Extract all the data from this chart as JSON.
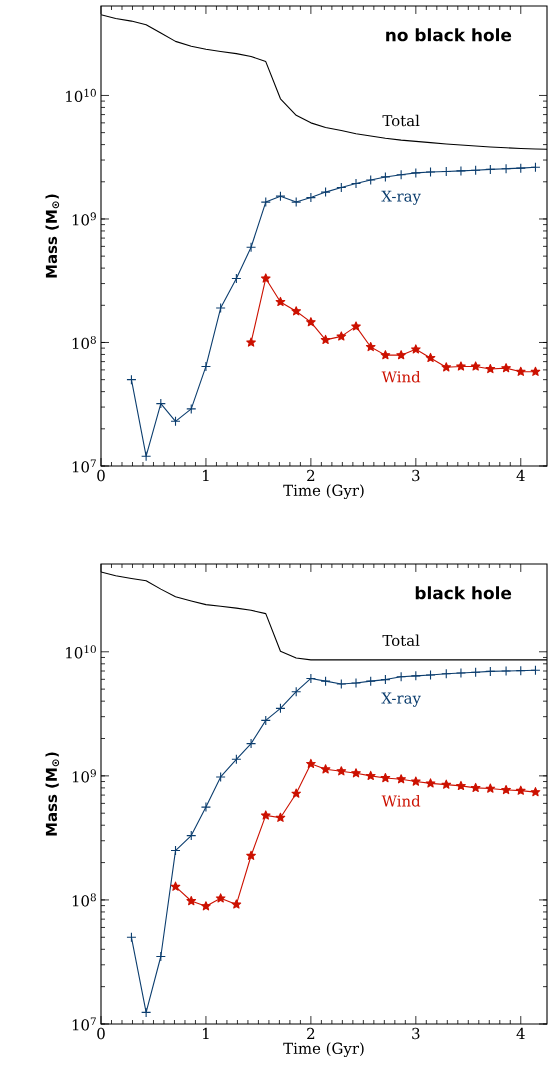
{
  "chart_data": [
    {
      "type": "line",
      "title": "no black hole",
      "xlabel": "Time (Gyr)",
      "ylabel": "Mass (M$_{⊙}$)",
      "log": true,
      "xlim": [
        0,
        4.25
      ],
      "ylim": [
        10000000.0,
        53000000000.0
      ],
      "xticks": [
        0,
        1,
        2,
        3,
        4
      ],
      "yticks": [
        {
          "value": 10000000.0,
          "label": "10$^{7}$"
        },
        {
          "value": 100000000.0,
          "label": "10$^{8}$"
        },
        {
          "value": 1000000000.0,
          "label": "10$^{9}$"
        },
        {
          "value": 10000000000.0,
          "label": "10$^{10}$"
        }
      ],
      "series": [
        {
          "name": "Total",
          "color": "#000000",
          "marker": "none",
          "x": [
            0,
            0.14,
            0.29,
            0.43,
            0.57,
            0.71,
            0.86,
            1.0,
            1.14,
            1.29,
            1.43,
            1.57,
            1.71,
            1.86,
            2.0,
            2.14,
            2.29,
            2.43,
            2.57,
            2.71,
            2.86,
            3.0,
            3.14,
            3.29,
            3.43,
            3.57,
            3.71,
            3.86,
            4.0,
            4.14,
            4.25
          ],
          "values": [
            45000000000.0,
            42000000000.0,
            40000000000.0,
            37400000000.0,
            32000000000.0,
            27400000000.0,
            25000000000.0,
            23700000000.0,
            22700000000.0,
            21800000000.0,
            20700000000.0,
            18800000000.0,
            9400000000.0,
            6900000000.0,
            6000000000.0,
            5500000000.0,
            5200000000.0,
            4900000000.0,
            4700000000.0,
            4500000000.0,
            4350000000.0,
            4250000000.0,
            4150000000.0,
            4050000000.0,
            3970000000.0,
            3900000000.0,
            3830000000.0,
            3770000000.0,
            3720000000.0,
            3690000000.0,
            3670000000.0
          ]
        },
        {
          "name": "X-ray",
          "color": "#0b3d6e",
          "marker": "cross",
          "x": [
            0.29,
            0.43,
            0.57,
            0.71,
            0.86,
            1.0,
            1.14,
            1.29,
            1.43,
            1.57,
            1.71,
            1.86,
            2.0,
            2.14,
            2.29,
            2.43,
            2.57,
            2.71,
            2.86,
            3.0,
            3.14,
            3.29,
            3.43,
            3.57,
            3.71,
            3.86,
            4.0,
            4.14
          ],
          "values": [
            50000000.0,
            12000000.0,
            32000000.0,
            23000000.0,
            29000000.0,
            64000000.0,
            190000000.0,
            330000000.0,
            590000000.0,
            1370000000.0,
            1530000000.0,
            1370000000.0,
            1490000000.0,
            1650000000.0,
            1800000000.0,
            1940000000.0,
            2070000000.0,
            2190000000.0,
            2280000000.0,
            2360000000.0,
            2400000000.0,
            2420000000.0,
            2450000000.0,
            2480000000.0,
            2520000000.0,
            2550000000.0,
            2580000000.0,
            2620000000.0
          ]
        },
        {
          "name": "Wind",
          "color": "#cc1100",
          "marker": "star",
          "x": [
            1.43,
            1.57,
            1.71,
            1.86,
            2.0,
            2.14,
            2.29,
            2.43,
            2.57,
            2.71,
            2.86,
            3.0,
            3.14,
            3.29,
            3.43,
            3.57,
            3.71,
            3.86,
            4.0,
            4.14
          ],
          "values": [
            100000000.0,
            330000000.0,
            213000000.0,
            179000000.0,
            146000000.0,
            105000000.0,
            112000000.0,
            135000000.0,
            92000000.0,
            79000000.0,
            79000000.0,
            88000000.0,
            75000000.0,
            63000000.0,
            64000000.0,
            64000000.0,
            61000000.0,
            62000000.0,
            58000000.0,
            58000000.0
          ]
        }
      ]
    },
    {
      "type": "line",
      "title": "black hole",
      "xlabel": "Time (Gyr)",
      "ylabel": "Mass (M$_{⊙}$)",
      "log": true,
      "xlim": [
        0,
        4.25
      ],
      "ylim": [
        10000000.0,
        51000000000.0
      ],
      "xticks": [
        0,
        1,
        2,
        3,
        4
      ],
      "yticks": [
        {
          "value": 10000000.0,
          "label": "10$^{7}$"
        },
        {
          "value": 100000000.0,
          "label": "10$^{8}$"
        },
        {
          "value": 1000000000.0,
          "label": "10$^{9}$"
        },
        {
          "value": 10000000000.0,
          "label": "10$^{10}$"
        }
      ],
      "series": [
        {
          "name": "Total",
          "color": "#000000",
          "marker": "none",
          "x": [
            0,
            0.14,
            0.29,
            0.43,
            0.57,
            0.71,
            0.86,
            1.0,
            1.14,
            1.29,
            1.43,
            1.57,
            1.71,
            1.86,
            2.0,
            2.14,
            2.29,
            2.43,
            2.57,
            2.71,
            2.86,
            3.0,
            3.14,
            3.29,
            3.43,
            3.57,
            3.71,
            3.86,
            4.0,
            4.14,
            4.25
          ],
          "values": [
            44000000000.0,
            41000000000.0,
            39000000000.0,
            37400000000.0,
            32000000000.0,
            27800000000.0,
            25700000000.0,
            24000000000.0,
            23300000000.0,
            22500000000.0,
            21600000000.0,
            20300000000.0,
            10100000000.0,
            8900000000.0,
            8600000000.0,
            8600000000.0,
            8600000000.0,
            8600000000.0,
            8600000000.0,
            8600000000.0,
            8600000000.0,
            8600000000.0,
            8600000000.0,
            8600000000.0,
            8600000000.0,
            8600000000.0,
            8600000000.0,
            8600000000.0,
            8600000000.0,
            8600000000.0,
            8600000000.0
          ]
        },
        {
          "name": "X-ray",
          "color": "#0b3d6e",
          "marker": "cross",
          "x": [
            0.29,
            0.43,
            0.57,
            0.71,
            0.86,
            1.0,
            1.14,
            1.29,
            1.43,
            1.57,
            1.71,
            1.86,
            2.0,
            2.14,
            2.29,
            2.43,
            2.57,
            2.71,
            2.86,
            3.0,
            3.14,
            3.29,
            3.43,
            3.57,
            3.71,
            3.86,
            4.0,
            4.14
          ],
          "values": [
            50000000.0,
            12400000.0,
            35000000.0,
            250000000.0,
            330000000.0,
            560000000.0,
            980000000.0,
            1360000000.0,
            1820000000.0,
            2800000000.0,
            3500000000.0,
            4770000000.0,
            6100000000.0,
            5800000000.0,
            5500000000.0,
            5600000000.0,
            5800000000.0,
            5970000000.0,
            6300000000.0,
            6400000000.0,
            6500000000.0,
            6650000000.0,
            6750000000.0,
            6850000000.0,
            6950000000.0,
            7000000000.0,
            7050000000.0,
            7100000000.0
          ]
        },
        {
          "name": "Wind",
          "color": "#cc1100",
          "marker": "star",
          "x": [
            0.71,
            0.86,
            1.0,
            1.14,
            1.29,
            1.43,
            1.57,
            1.71,
            1.86,
            2.0,
            2.14,
            2.29,
            2.43,
            2.57,
            2.71,
            2.86,
            3.0,
            3.14,
            3.29,
            3.43,
            3.57,
            3.71,
            3.86,
            4.0,
            4.14
          ],
          "values": [
            128000000.0,
            98000000.0,
            89000000.0,
            103000000.0,
            92000000.0,
            227000000.0,
            480000000.0,
            460000000.0,
            720000000.0,
            1250000000.0,
            1130000000.0,
            1090000000.0,
            1050000000.0,
            1000000000.0,
            960000000.0,
            940000000.0,
            900000000.0,
            870000000.0,
            850000000.0,
            830000000.0,
            800000000.0,
            790000000.0,
            770000000.0,
            760000000.0,
            740000000.0
          ]
        }
      ]
    }
  ]
}
